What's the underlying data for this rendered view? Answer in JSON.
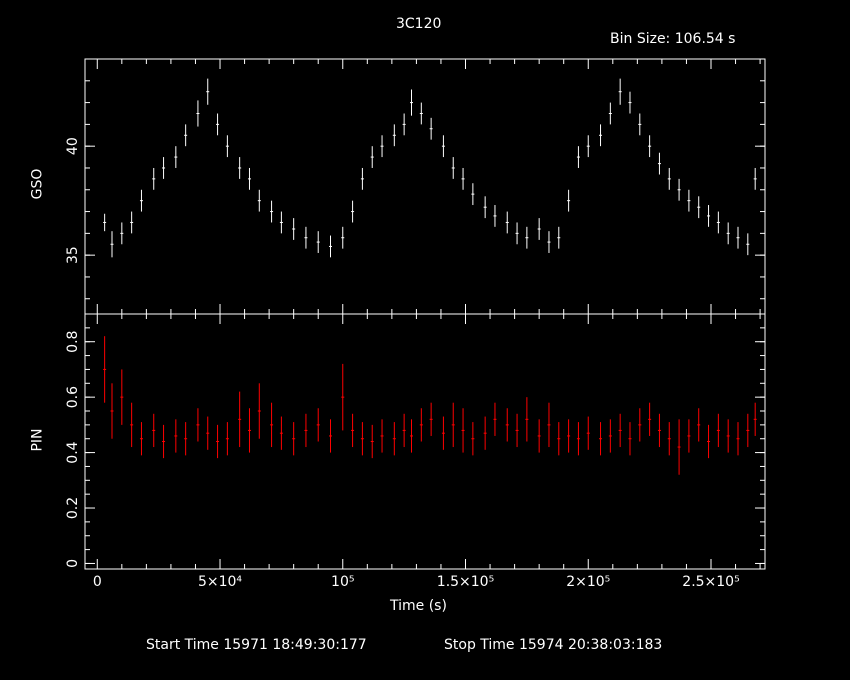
{
  "header": {
    "title": "3C120",
    "bin_size": "Bin Size: 106.54 s"
  },
  "footer": {
    "start_time": "Start Time 15971 18:49:30:177",
    "stop_time": "Stop Time 15974 20:38:03:183"
  },
  "colors": {
    "background": "#000000",
    "axes": "#ffffff",
    "gso_series": "#ffffff",
    "pin_series": "#ff0000"
  },
  "chart_data": {
    "type": "line",
    "title": "3C120",
    "xlabel": "Time (s)",
    "xlim": [
      -5000,
      272000
    ],
    "x_tick_labels": [
      "0",
      "5×10⁴",
      "10⁵",
      "1.5×10⁵",
      "2×10⁵",
      "2.5×10⁵"
    ],
    "x_ticks": [
      0,
      50000,
      100000,
      150000,
      200000,
      250000
    ],
    "panels": [
      {
        "name": "GSO",
        "ylabel": "GSO",
        "ylim": [
          32.3,
          44.0
        ],
        "y_ticks": [
          35,
          40
        ],
        "y_tick_labels": [
          "35",
          "40"
        ],
        "series": [
          {
            "color": "#ffffff",
            "x": [
              3000,
              6000,
              10000,
              14000,
              18000,
              23000,
              27000,
              32000,
              36000,
              41000,
              45000,
              49000,
              53000,
              58000,
              62000,
              66000,
              71000,
              75000,
              80000,
              85000,
              90000,
              95000,
              100000,
              104000,
              108000,
              112000,
              116000,
              121000,
              125000,
              128000,
              132000,
              136000,
              141000,
              145000,
              149000,
              153000,
              158000,
              162000,
              167000,
              171000,
              175000,
              180000,
              184000,
              188000,
              192000,
              196000,
              200000,
              205000,
              209000,
              213000,
              217000,
              221000,
              225000,
              229000,
              233000,
              237000,
              241000,
              245000,
              249000,
              253000,
              257000,
              261000,
              265000,
              268000
            ],
            "y": [
              36.5,
              35.5,
              36.0,
              36.5,
              37.5,
              38.5,
              39.0,
              39.5,
              40.5,
              41.5,
              42.5,
              41.0,
              40.0,
              39.0,
              38.5,
              37.5,
              37.0,
              36.5,
              36.2,
              35.8,
              35.6,
              35.4,
              35.8,
              37.0,
              38.5,
              39.5,
              40.0,
              40.5,
              41.0,
              42.0,
              41.5,
              40.8,
              40.0,
              39.0,
              38.5,
              37.8,
              37.2,
              36.8,
              36.5,
              36.0,
              35.8,
              36.2,
              35.6,
              35.8,
              37.5,
              39.5,
              40.0,
              40.5,
              41.5,
              42.5,
              42.0,
              41.0,
              40.0,
              39.2,
              38.5,
              38.0,
              37.5,
              37.2,
              36.8,
              36.5,
              36.0,
              35.8,
              35.5,
              38.5
            ],
            "err": [
              0.4,
              0.6,
              0.5,
              0.5,
              0.5,
              0.5,
              0.5,
              0.5,
              0.5,
              0.6,
              0.6,
              0.5,
              0.5,
              0.5,
              0.5,
              0.5,
              0.5,
              0.5,
              0.5,
              0.5,
              0.5,
              0.5,
              0.5,
              0.5,
              0.5,
              0.5,
              0.5,
              0.5,
              0.5,
              0.6,
              0.5,
              0.5,
              0.5,
              0.5,
              0.5,
              0.5,
              0.5,
              0.5,
              0.5,
              0.5,
              0.5,
              0.5,
              0.5,
              0.5,
              0.5,
              0.5,
              0.5,
              0.5,
              0.5,
              0.6,
              0.5,
              0.5,
              0.5,
              0.5,
              0.5,
              0.5,
              0.5,
              0.5,
              0.5,
              0.5,
              0.5,
              0.5,
              0.5,
              0.5
            ]
          }
        ]
      },
      {
        "name": "PIN",
        "ylabel": "PIN",
        "ylim": [
          -0.02,
          0.9
        ],
        "y_ticks": [
          0,
          0.2,
          0.4,
          0.6,
          0.8
        ],
        "y_tick_labels": [
          "0",
          "0.2",
          "0.4",
          "0.6",
          "0.8"
        ],
        "series": [
          {
            "color": "#ff0000",
            "x": [
              3000,
              6000,
              10000,
              14000,
              18000,
              23000,
              27000,
              32000,
              36000,
              41000,
              45000,
              49000,
              53000,
              58000,
              62000,
              66000,
              71000,
              75000,
              80000,
              85000,
              90000,
              95000,
              100000,
              104000,
              108000,
              112000,
              116000,
              121000,
              125000,
              128000,
              132000,
              136000,
              141000,
              145000,
              149000,
              153000,
              158000,
              162000,
              167000,
              171000,
              175000,
              180000,
              184000,
              188000,
              192000,
              196000,
              200000,
              205000,
              209000,
              213000,
              217000,
              221000,
              225000,
              229000,
              233000,
              237000,
              241000,
              245000,
              249000,
              253000,
              257000,
              261000,
              265000,
              268000
            ],
            "y": [
              0.7,
              0.55,
              0.6,
              0.5,
              0.45,
              0.48,
              0.44,
              0.46,
              0.45,
              0.5,
              0.47,
              0.44,
              0.45,
              0.52,
              0.48,
              0.55,
              0.5,
              0.47,
              0.45,
              0.48,
              0.5,
              0.46,
              0.6,
              0.48,
              0.45,
              0.44,
              0.46,
              0.45,
              0.48,
              0.46,
              0.5,
              0.52,
              0.47,
              0.5,
              0.48,
              0.45,
              0.47,
              0.52,
              0.5,
              0.48,
              0.52,
              0.46,
              0.5,
              0.45,
              0.46,
              0.45,
              0.47,
              0.45,
              0.46,
              0.48,
              0.45,
              0.5,
              0.52,
              0.48,
              0.45,
              0.42,
              0.46,
              0.5,
              0.44,
              0.48,
              0.46,
              0.45,
              0.48,
              0.52
            ],
            "err": [
              0.12,
              0.1,
              0.1,
              0.08,
              0.06,
              0.06,
              0.06,
              0.06,
              0.06,
              0.06,
              0.06,
              0.06,
              0.06,
              0.1,
              0.08,
              0.1,
              0.08,
              0.06,
              0.06,
              0.06,
              0.06,
              0.06,
              0.12,
              0.06,
              0.06,
              0.06,
              0.06,
              0.06,
              0.06,
              0.06,
              0.06,
              0.06,
              0.06,
              0.08,
              0.08,
              0.06,
              0.06,
              0.06,
              0.06,
              0.06,
              0.08,
              0.06,
              0.08,
              0.06,
              0.06,
              0.06,
              0.06,
              0.06,
              0.06,
              0.06,
              0.06,
              0.06,
              0.06,
              0.06,
              0.06,
              0.1,
              0.06,
              0.06,
              0.06,
              0.06,
              0.06,
              0.06,
              0.06,
              0.06
            ]
          }
        ]
      }
    ]
  }
}
